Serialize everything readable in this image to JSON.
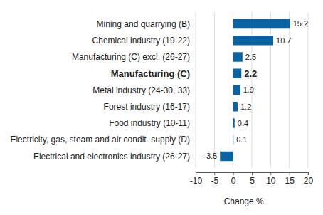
{
  "chart_data": {
    "type": "bar",
    "orientation": "horizontal",
    "categories": [
      "Mining and quarrying (B)",
      "Chemical industry (19-22)",
      "Manufacturing (C) excl. (26-27)",
      "Manufacturing (C)",
      "Metal industry (24-30, 33)",
      "Forest industry (16-17)",
      "Food industry (10-11)",
      "Electricity, gas, steam and air condit. supply (D)",
      "Electrical and electronics industry (26-27)"
    ],
    "values": [
      15.2,
      10.7,
      2.5,
      2.2,
      1.9,
      1.2,
      0.4,
      0.1,
      -3.5
    ],
    "color": "#0a64a4",
    "x_label": "Change %",
    "xlim": [
      -10,
      20
    ],
    "xticks": [
      -10,
      -5,
      0,
      5,
      10,
      15,
      20
    ],
    "grid": true,
    "data_labels": true
  }
}
